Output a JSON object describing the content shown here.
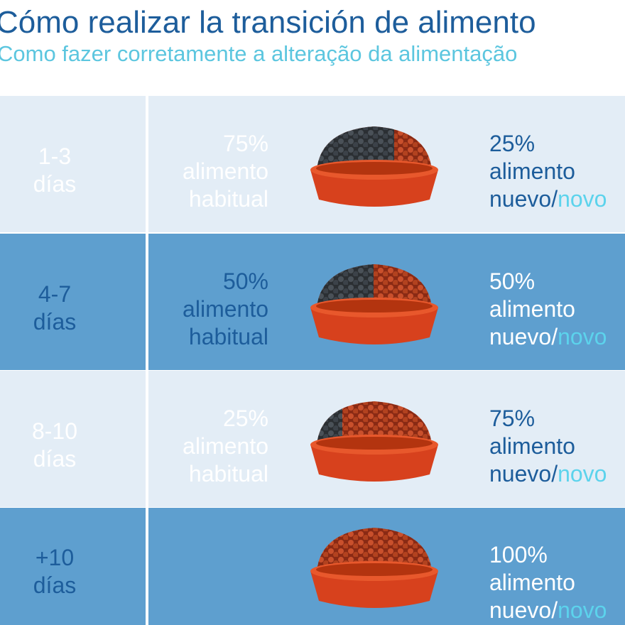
{
  "header": {
    "title": "Cómo realizar la transición de alimento",
    "subtitle": "Como fazer corretamente a alteração da alimentação"
  },
  "rows": [
    {
      "days": [
        "1-3",
        "días"
      ],
      "old": [
        "75%",
        "alimento",
        "habitual"
      ],
      "new": [
        "25%",
        "alimento",
        "nuevo/",
        "novo"
      ]
    },
    {
      "days": [
        "4-7",
        "días"
      ],
      "old": [
        "50%",
        "alimento",
        "habitual"
      ],
      "new": [
        "50%",
        "alimento",
        "nuevo/",
        "novo"
      ]
    },
    {
      "days": [
        "8-10",
        "días"
      ],
      "old": [
        "25%",
        "alimento",
        "habitual"
      ],
      "new": [
        "75%",
        "alimento",
        "nuevo/",
        "novo"
      ]
    },
    {
      "days": [
        "+10",
        "días"
      ],
      "new": [
        "100%",
        "alimento",
        "nuevo/",
        "novo"
      ]
    }
  ]
}
